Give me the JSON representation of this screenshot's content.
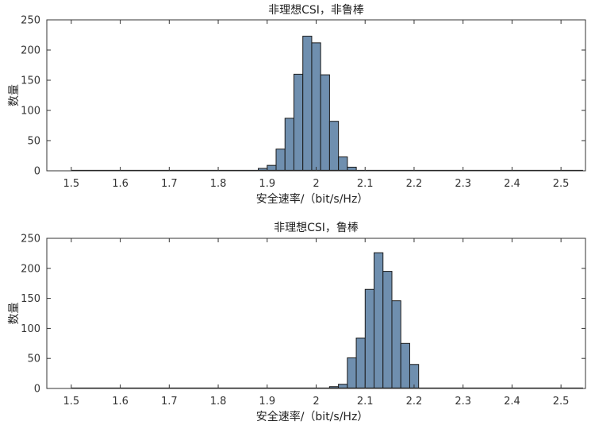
{
  "chart_data": [
    {
      "type": "bar",
      "title": "非理想CSI，非鲁棒",
      "xlabel": "安全速率/（bit/s/Hz）",
      "ylabel": "数量",
      "xlim": [
        1.45,
        2.55
      ],
      "ylim": [
        0,
        250
      ],
      "xticks": [
        "1.5",
        "1.6",
        "1.7",
        "1.8",
        "1.9",
        "2",
        "2.1",
        "2.2",
        "2.3",
        "2.4",
        "2.5"
      ],
      "yticks": [
        "0",
        "50",
        "100",
        "150",
        "200",
        "250"
      ],
      "bin_width": 0.0182,
      "bin_start": 1.8818,
      "values": [
        4,
        9,
        36,
        87,
        160,
        223,
        212,
        159,
        82,
        23,
        6
      ],
      "bar_color": "#6f8faf",
      "grid": false
    },
    {
      "type": "bar",
      "title": "非理想CSI，鲁棒",
      "xlabel": "安全速率/（bit/s/Hz）",
      "ylabel": "数量",
      "xlim": [
        1.45,
        2.55
      ],
      "ylim": [
        0,
        250
      ],
      "xticks": [
        "1.5",
        "1.6",
        "1.7",
        "1.8",
        "1.9",
        "2",
        "2.1",
        "2.2",
        "2.3",
        "2.4",
        "2.5"
      ],
      "yticks": [
        "0",
        "50",
        "100",
        "150",
        "200",
        "250"
      ],
      "bin_width": 0.0182,
      "bin_start": 2.0273,
      "values": [
        3,
        7,
        51,
        84,
        165,
        226,
        195,
        146,
        75,
        40
      ],
      "bar_color": "#6f8faf",
      "grid": false
    }
  ]
}
